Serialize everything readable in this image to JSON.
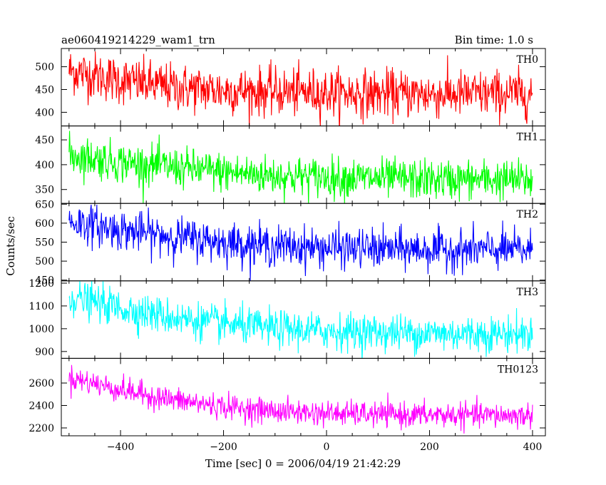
{
  "header": {
    "title": "ae060419214229_wam1_trn",
    "bin_time": "Bin time: 1.0 s"
  },
  "chart_data": {
    "type": "line",
    "xlabel": "Time [sec] 0 = 2006/04/19 21:42:29",
    "ylabel": "Counts/sec",
    "xlim": [
      -515,
      425
    ],
    "xticks": [
      -400,
      -200,
      0,
      200,
      400
    ],
    "panels": [
      {
        "name": "TH0",
        "color": "#ff0000",
        "ylim": [
          370,
          540
        ],
        "yticks": [
          400,
          450,
          500
        ],
        "trend": [
          [
            -500,
            492
          ],
          [
            -400,
            470
          ],
          [
            -300,
            455
          ],
          [
            -200,
            448
          ],
          [
            -100,
            445
          ],
          [
            0,
            443
          ],
          [
            100,
            441
          ],
          [
            200,
            440
          ],
          [
            300,
            440
          ],
          [
            400,
            441
          ]
        ],
        "noise": 26
      },
      {
        "name": "TH1",
        "color": "#00ff00",
        "ylim": [
          322,
          478
        ],
        "yticks": [
          350,
          400,
          450
        ],
        "trend": [
          [
            -500,
            420
          ],
          [
            -400,
            405
          ],
          [
            -300,
            395
          ],
          [
            -200,
            385
          ],
          [
            -100,
            378
          ],
          [
            0,
            375
          ],
          [
            100,
            372
          ],
          [
            200,
            370
          ],
          [
            300,
            370
          ],
          [
            400,
            369
          ]
        ],
        "noise": 20
      },
      {
        "name": "TH2",
        "color": "#0000ff",
        "ylim": [
          448,
          652
        ],
        "yticks": [
          450,
          500,
          550,
          600,
          650
        ],
        "trend": [
          [
            -500,
            605
          ],
          [
            -400,
            582
          ],
          [
            -300,
            565
          ],
          [
            -200,
            550
          ],
          [
            -100,
            540
          ],
          [
            0,
            535
          ],
          [
            100,
            532
          ],
          [
            200,
            530
          ],
          [
            300,
            530
          ],
          [
            400,
            529
          ]
        ],
        "noise": 26
      },
      {
        "name": "TH3",
        "color": "#00ffff",
        "ylim": [
          870,
          1210
        ],
        "yticks": [
          900,
          1000,
          1100,
          1200
        ],
        "trend": [
          [
            -500,
            1140
          ],
          [
            -400,
            1090
          ],
          [
            -300,
            1050
          ],
          [
            -200,
            1020
          ],
          [
            -100,
            1000
          ],
          [
            0,
            990
          ],
          [
            100,
            985
          ],
          [
            200,
            980
          ],
          [
            300,
            978
          ],
          [
            400,
            977
          ]
        ],
        "noise": 40
      },
      {
        "name": "TH0123",
        "color": "#ff00ff",
        "ylim": [
          2130,
          2820
        ],
        "yticks": [
          2200,
          2400,
          2600
        ],
        "trend": [
          [
            -500,
            2650
          ],
          [
            -400,
            2540
          ],
          [
            -300,
            2450
          ],
          [
            -200,
            2390
          ],
          [
            -100,
            2350
          ],
          [
            0,
            2330
          ],
          [
            100,
            2320
          ],
          [
            200,
            2315
          ],
          [
            300,
            2312
          ],
          [
            400,
            2310
          ]
        ],
        "noise": 55
      }
    ],
    "t_start": -500,
    "t_end": 400,
    "bin": 1.0
  }
}
